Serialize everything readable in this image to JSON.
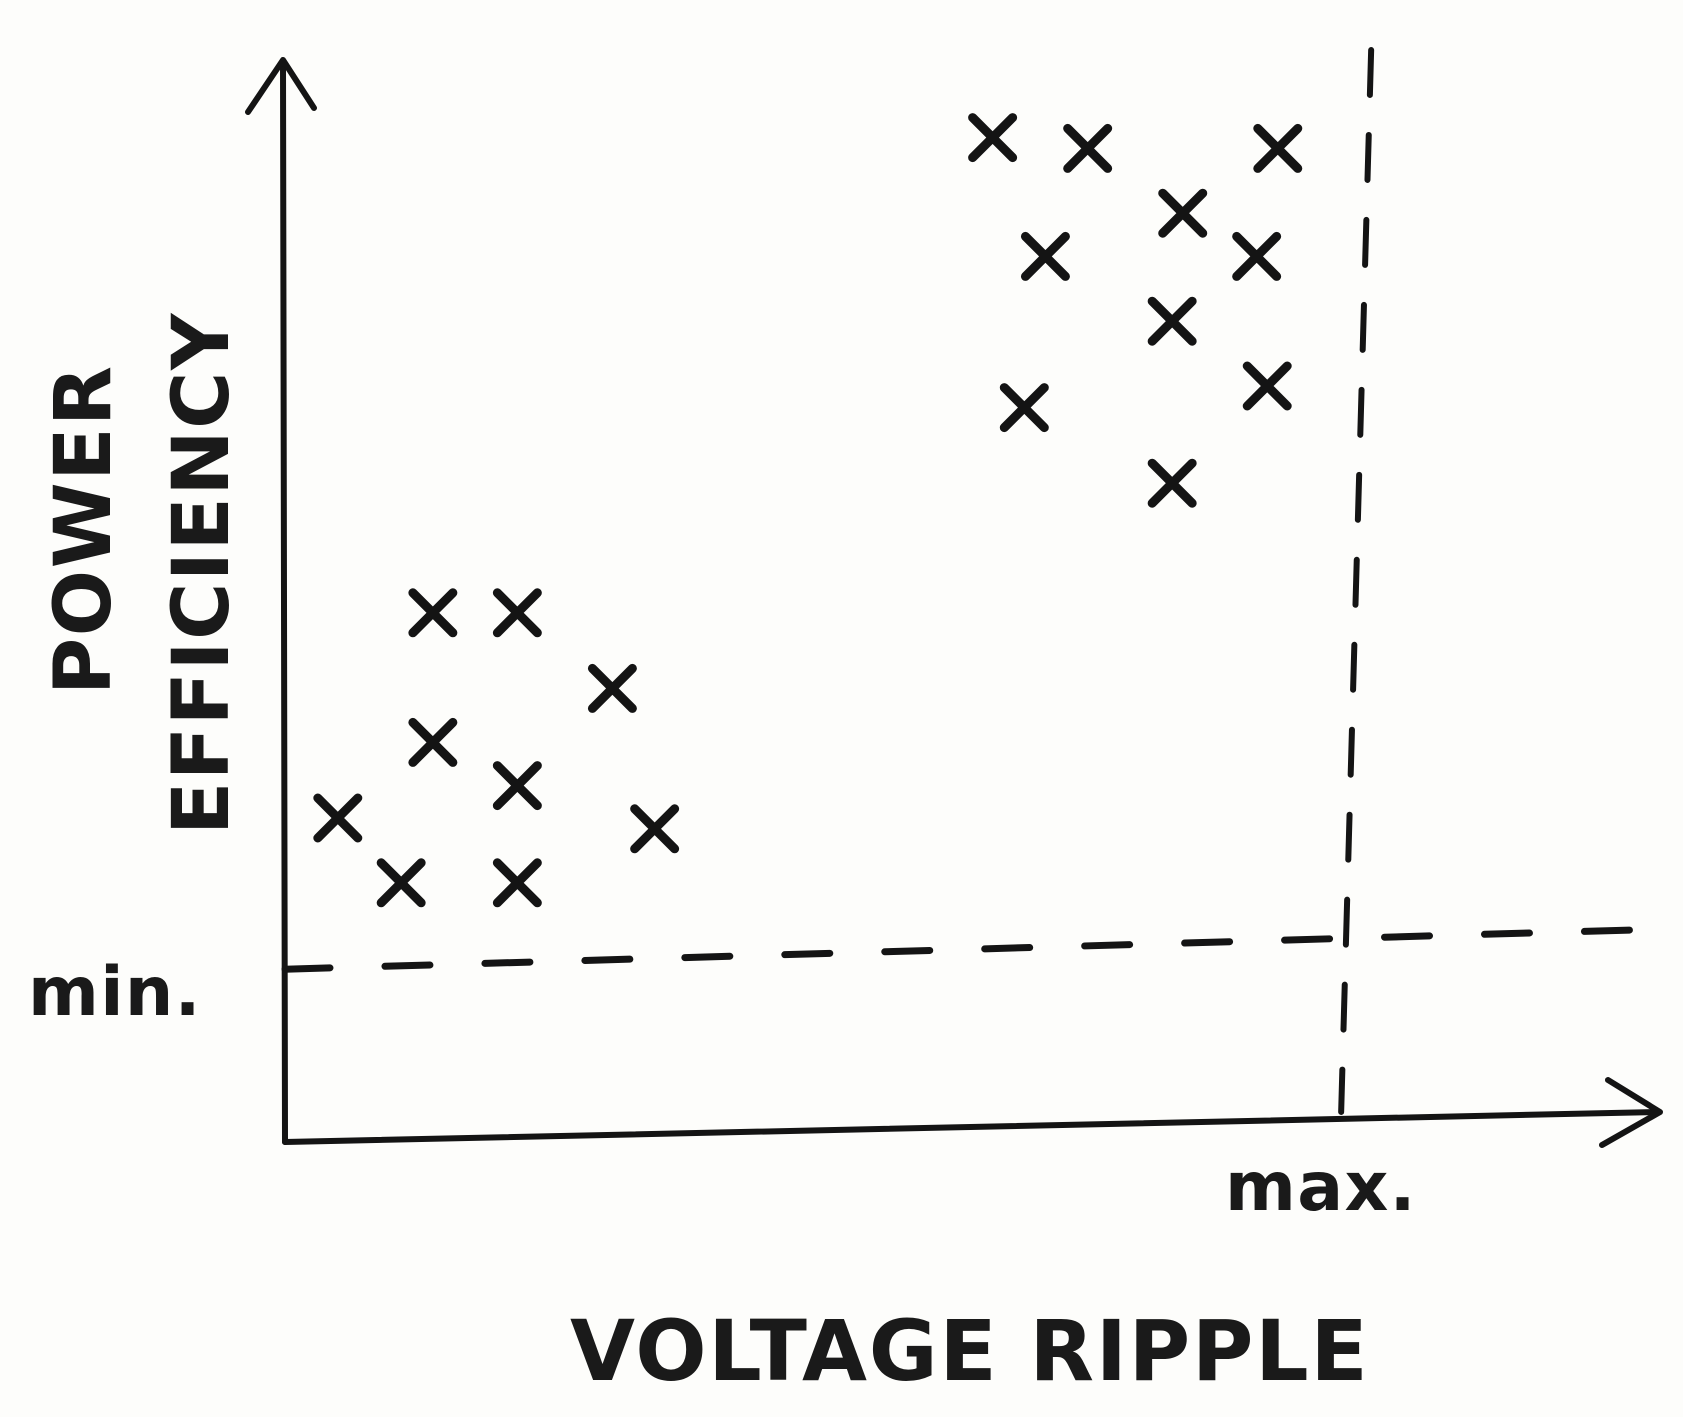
{
  "chart_data": {
    "type": "scatter",
    "title": "",
    "xlabel": "VOLTAGE RIPPLE",
    "ylabel_line1": "POWER",
    "ylabel_line2": "EFFICIENCY",
    "x_threshold_label": "max.",
    "y_threshold_label": "min.",
    "xlim": [
      0,
      1.3
    ],
    "ylim": [
      0,
      1.0
    ],
    "x_threshold": 1.0,
    "y_threshold": 0.16,
    "grid": false,
    "series": [
      {
        "points": [
          [
            0.05,
            0.3
          ],
          [
            0.14,
            0.49
          ],
          [
            0.22,
            0.49
          ],
          [
            0.31,
            0.42
          ],
          [
            0.14,
            0.37
          ],
          [
            0.22,
            0.33
          ],
          [
            0.35,
            0.29
          ],
          [
            0.11,
            0.24
          ],
          [
            0.22,
            0.24
          ]
        ]
      },
      {
        "points": [
          [
            0.67,
            0.93
          ],
          [
            0.76,
            0.92
          ],
          [
            0.94,
            0.92
          ],
          [
            0.85,
            0.86
          ],
          [
            0.72,
            0.82
          ],
          [
            0.92,
            0.82
          ],
          [
            0.84,
            0.76
          ],
          [
            0.7,
            0.68
          ],
          [
            0.93,
            0.7
          ],
          [
            0.84,
            0.61
          ]
        ]
      }
    ]
  }
}
